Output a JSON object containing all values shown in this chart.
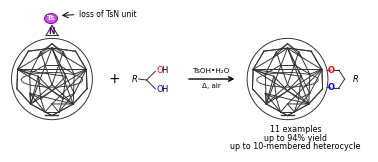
{
  "bg_color": "#ffffff",
  "text_color": "#000000",
  "red_color": "#ff0000",
  "blue_color": "#0000ff",
  "purple_fill": "#cc44ee",
  "purple_edge": "#880099",
  "label_loss": "loss of TsN unit",
  "label_reagent_line1": "TsOH•H₂O",
  "label_reagent_line2": "Δ, air",
  "label_plus": "+",
  "label_R": "R",
  "label_ex1": "11 examples",
  "label_ex2": "up to 94% yield",
  "label_ex3": "up to 10-membered heterocycle",
  "fullerene_color": "#333333",
  "line_width": 0.7
}
